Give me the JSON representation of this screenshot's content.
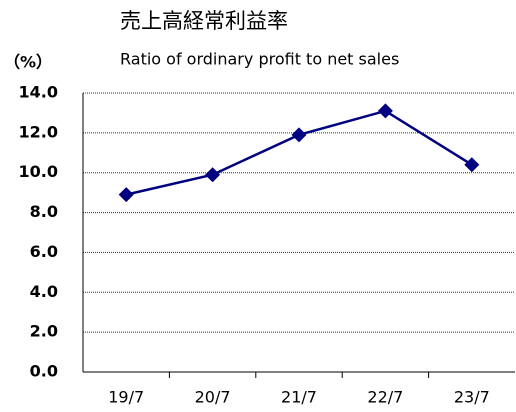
{
  "chart_data": {
    "type": "line",
    "title": "売上高経常利益率",
    "subtitle": "Ratio of ordinary profit to net sales",
    "y_axis_label": "（%）",
    "categories": [
      "19/7",
      "20/7",
      "21/7",
      "22/7",
      "23/7"
    ],
    "values": [
      8.9,
      9.9,
      11.9,
      13.1,
      10.4
    ],
    "color": "#000080",
    "ylim": [
      0,
      14
    ],
    "yticks": [
      {
        "value": 0,
        "label": "0.0"
      },
      {
        "value": 2,
        "label": "2.0"
      },
      {
        "value": 4,
        "label": "4.0"
      },
      {
        "value": 6,
        "label": "6.0"
      },
      {
        "value": 8,
        "label": "8.0"
      },
      {
        "value": 10,
        "label": "10.0"
      },
      {
        "value": 12,
        "label": "12.0"
      },
      {
        "value": 14,
        "label": "14.0"
      }
    ],
    "grid": true
  }
}
